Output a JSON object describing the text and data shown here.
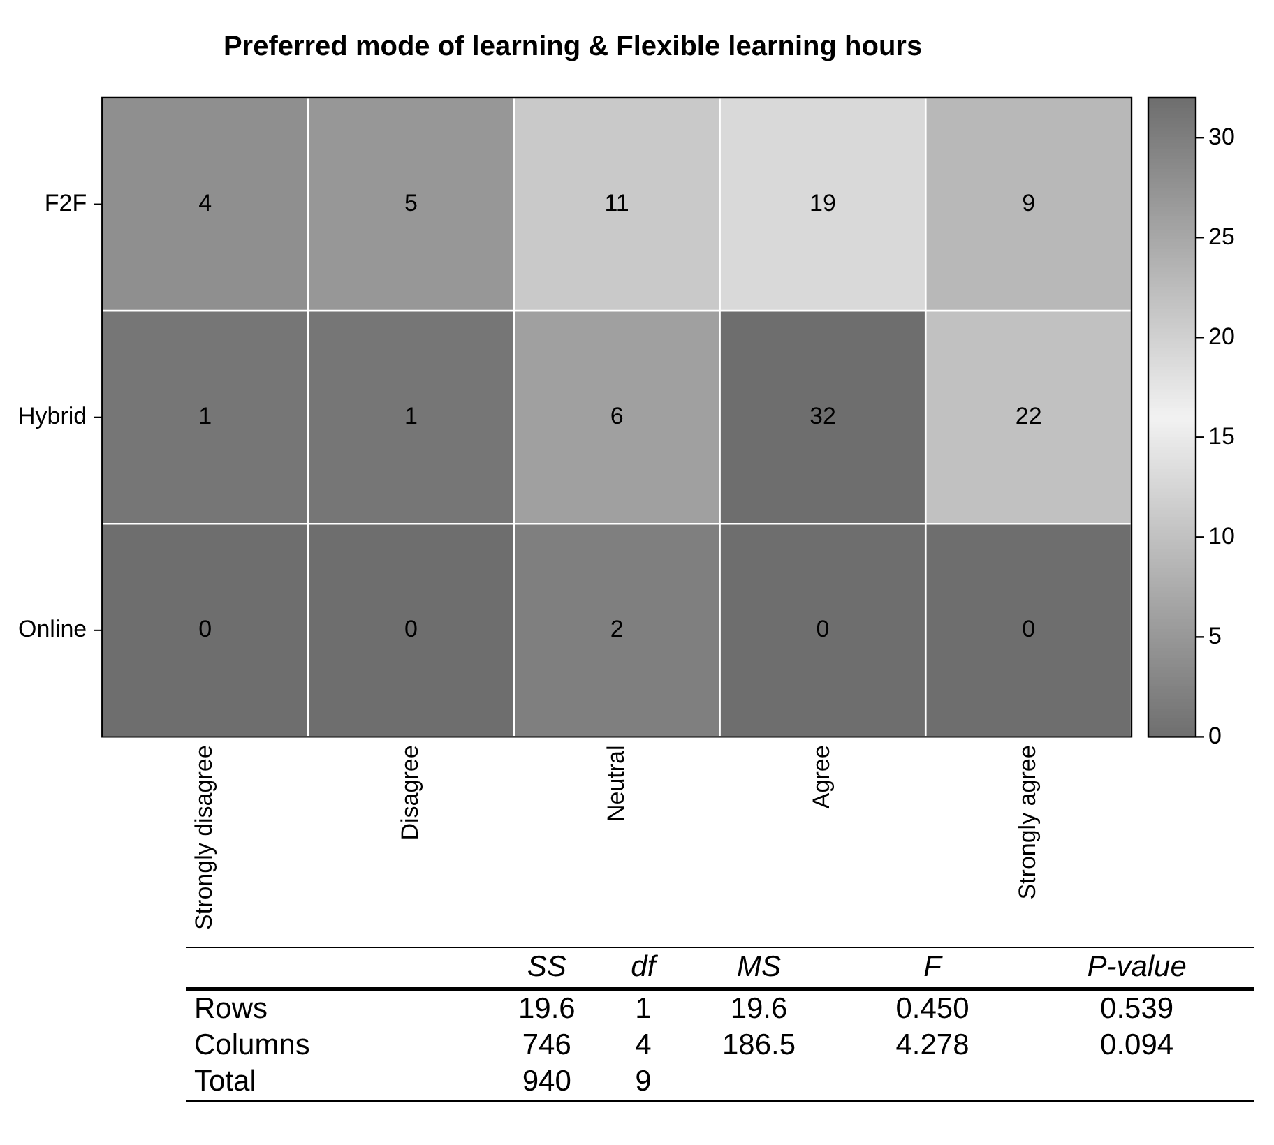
{
  "chart_data": [
    {
      "type": "heatmap",
      "title": "Preferred mode of learning & Flexible learning hours",
      "categories": [
        "Strongly disagree",
        "Disagree",
        "Neutral",
        "Agree",
        "Strongly agree"
      ],
      "y_categories": [
        "F2F",
        "Hybrid",
        "Online"
      ],
      "cells": [
        [
          4,
          5,
          11,
          19,
          9
        ],
        [
          1,
          1,
          6,
          32,
          22
        ],
        [
          0,
          0,
          2,
          0,
          0
        ]
      ],
      "colors": [
        "#6e6e6e",
        "#f2f2f2",
        "#6e6e6e"
      ],
      "clim": [
        0,
        32
      ],
      "cticks": [
        0,
        5,
        10,
        15,
        20,
        25,
        30
      ],
      "data_labels": true
    },
    {
      "type": "other",
      "categories": [
        "SS",
        "df",
        "MS",
        "F",
        "P-value"
      ],
      "y_categories": [
        "Rows",
        "Columns",
        "Total"
      ],
      "cell_labels": [
        [
          "19.6",
          "1",
          "19.6",
          "0.450",
          "0.539"
        ],
        [
          "746",
          "4",
          "186.5",
          "4.278",
          "0.094"
        ],
        [
          "940",
          "9",
          null,
          null,
          null
        ]
      ]
    }
  ]
}
